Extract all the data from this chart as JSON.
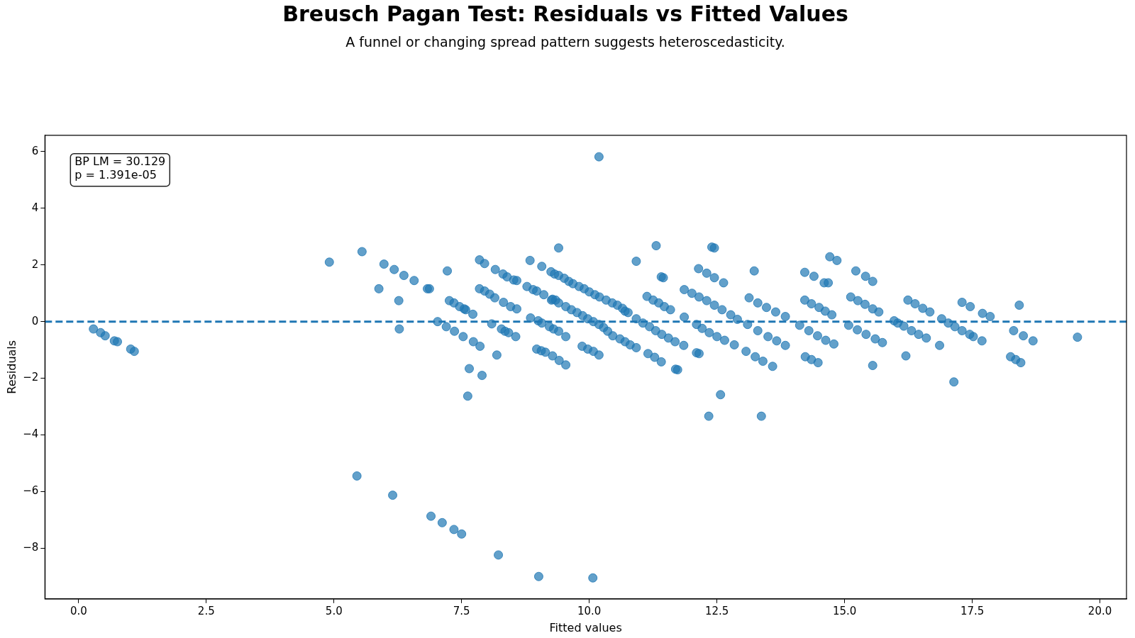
{
  "chart_data": {
    "type": "scatter",
    "title": "Breusch Pagan Test: Residuals vs Fitted Values",
    "subtitle": "A funnel or changing spread pattern suggests heteroscedasticity.",
    "xlabel": "Fitted values",
    "ylabel": "Residuals",
    "annotations": [
      "BP LM = 30.129\np = 1.391e-05"
    ],
    "xlim": [
      -0.66,
      20.52
    ],
    "ylim": [
      -9.79,
      6.58
    ],
    "xticks": [
      {
        "value": 0,
        "label": "0.0"
      },
      {
        "value": 2.5,
        "label": "2.5"
      },
      {
        "value": 5,
        "label": "5.0"
      },
      {
        "value": 7.5,
        "label": "7.5"
      },
      {
        "value": 10,
        "label": "10.0"
      },
      {
        "value": 12.5,
        "label": "12.5"
      },
      {
        "value": 15,
        "label": "15.0"
      },
      {
        "value": 17.5,
        "label": "17.5"
      },
      {
        "value": 20,
        "label": "20.0"
      }
    ],
    "yticks": [
      {
        "value": -8,
        "label": "−8"
      },
      {
        "value": -6,
        "label": "−6"
      },
      {
        "value": -4,
        "label": "−4"
      },
      {
        "value": -2,
        "label": "−2"
      },
      0,
      2,
      4,
      6
    ],
    "grid": false,
    "legend": false,
    "marker": "circle",
    "ref_lines": [
      {
        "axis": "y",
        "value": 0,
        "color": "#1f77b4",
        "line_style": "dashed"
      }
    ],
    "series": [
      {
        "color": "#1f77b4",
        "x": [
          0.29,
          0.43,
          0.52,
          0.7,
          0.76,
          1.02,
          1.09,
          4.91,
          5.55,
          5.88,
          5.98,
          6.18,
          6.37,
          6.57,
          6.83,
          6.87,
          6.27,
          6.28,
          5.45,
          6.15,
          6.9,
          7.12,
          7.35,
          7.5,
          8.22,
          9.01,
          10.07,
          10.19,
          7.22,
          7.26,
          7.35,
          7.46,
          7.55,
          7.58,
          7.03,
          7.2,
          7.36,
          7.53,
          7.73,
          7.86,
          7.65,
          7.9,
          7.62,
          7.72,
          7.85,
          7.95,
          8.16,
          8.31,
          8.39,
          8.52,
          8.58,
          7.85,
          7.95,
          8.05,
          8.15,
          8.32,
          8.46,
          8.58,
          8.09,
          8.28,
          8.35,
          8.42,
          8.56,
          8.19,
          8.84,
          9.07,
          9.4,
          8.78,
          8.9,
          8.97,
          9.11,
          9.28,
          9.34,
          8.85,
          9.0,
          9.07,
          9.22,
          9.3,
          9.4,
          9.54,
          8.97,
          9.06,
          9.14,
          9.28,
          9.41,
          9.54,
          9.25,
          9.32,
          9.4,
          9.51,
          9.6,
          9.68,
          9.8,
          9.9,
          10.0,
          10.11,
          10.2,
          10.33,
          10.45,
          10.55,
          10.65,
          10.7,
          10.76,
          9.26,
          9.4,
          9.54,
          9.65,
          9.76,
          9.87,
          9.97,
          10.08,
          10.19,
          10.28,
          10.36,
          10.46,
          10.6,
          10.7,
          10.8,
          10.92,
          9.86,
          9.97,
          10.08,
          10.19,
          10.92,
          11.31,
          11.41,
          11.45,
          11.13,
          11.25,
          11.36,
          11.47,
          11.59,
          10.92,
          11.05,
          11.18,
          11.3,
          11.42,
          11.55,
          11.68,
          11.85,
          11.15,
          11.28,
          11.41,
          11.69,
          11.73,
          11.86,
          11.86,
          12.01,
          12.15,
          12.3,
          12.45,
          12.6,
          12.77,
          12.14,
          12.3,
          12.45,
          12.63,
          12.4,
          12.45,
          12.1,
          12.21,
          12.35,
          12.5,
          12.65,
          12.84,
          12.1,
          12.15,
          12.57,
          12.34,
          13.37,
          13.23,
          13.13,
          13.3,
          13.47,
          13.65,
          13.84,
          12.9,
          13.1,
          13.3,
          13.5,
          13.67,
          13.84,
          13.07,
          13.25,
          13.4,
          13.59,
          14.22,
          14.4,
          14.22,
          14.35,
          14.5,
          14.62,
          14.75,
          14.6,
          14.68,
          14.71,
          14.85,
          14.12,
          14.3,
          14.47,
          14.63,
          14.79,
          14.23,
          14.35,
          14.48,
          15.22,
          15.12,
          15.26,
          15.4,
          15.55,
          15.67,
          15.41,
          15.55,
          15.08,
          15.25,
          15.42,
          15.6,
          15.74,
          15.55,
          15.97,
          16.04,
          16.16,
          16.24,
          16.38,
          16.53,
          16.67,
          16.31,
          16.45,
          16.6,
          16.2,
          16.86,
          16.9,
          17.03,
          17.16,
          17.3,
          17.45,
          17.52,
          17.14,
          17.3,
          17.46,
          17.69,
          17.7,
          17.85,
          18.42,
          18.31,
          18.5,
          18.69,
          18.25,
          18.35,
          18.45,
          19.56
        ],
        "values": [
          -0.26,
          -0.39,
          -0.5,
          -0.68,
          -0.71,
          -0.97,
          -1.05,
          2.1,
          2.47,
          1.16,
          2.03,
          1.84,
          1.63,
          1.45,
          1.16,
          1.16,
          0.74,
          -0.26,
          -5.45,
          -6.13,
          -6.87,
          -7.1,
          -7.34,
          -7.5,
          -8.24,
          -9.0,
          -9.05,
          5.82,
          1.79,
          0.74,
          0.66,
          0.53,
          0.45,
          0.42,
          0,
          -0.18,
          -0.34,
          -0.53,
          -0.71,
          -0.87,
          -1.66,
          -1.9,
          -2.63,
          0.26,
          2.18,
          2.05,
          1.84,
          1.68,
          1.58,
          1.47,
          1.45,
          1.16,
          1.08,
          0.97,
          0.84,
          0.68,
          0.53,
          0.45,
          -0.08,
          -0.26,
          -0.34,
          -0.39,
          -0.53,
          -1.18,
          2.16,
          1.95,
          2.6,
          1.24,
          1.13,
          1.08,
          0.95,
          0.79,
          0.76,
          0.13,
          0.03,
          -0.05,
          -0.18,
          -0.26,
          -0.34,
          -0.53,
          -0.97,
          -1.03,
          -1.08,
          -1.21,
          -1.37,
          -1.53,
          1.76,
          1.68,
          1.63,
          1.53,
          1.42,
          1.34,
          1.24,
          1.16,
          1.05,
          0.95,
          0.87,
          0.76,
          0.66,
          0.58,
          0.47,
          0.37,
          0.32,
          0.76,
          0.66,
          0.53,
          0.42,
          0.32,
          0.21,
          0.1,
          0,
          -0.1,
          -0.21,
          -0.34,
          -0.5,
          -0.61,
          -0.71,
          -0.82,
          -0.92,
          -0.87,
          -0.97,
          -1.05,
          -1.18,
          2.13,
          2.68,
          1.58,
          1.55,
          0.89,
          0.76,
          0.66,
          0.53,
          0.42,
          0.1,
          -0.05,
          -0.18,
          -0.32,
          -0.45,
          -0.58,
          -0.71,
          -0.84,
          -1.13,
          -1.26,
          -1.42,
          -1.68,
          -1.7,
          1.13,
          0.16,
          1.0,
          0.87,
          0.74,
          0.58,
          0.42,
          0.24,
          1.87,
          1.71,
          1.55,
          1.37,
          2.63,
          2.6,
          -0.1,
          -0.24,
          -0.39,
          -0.53,
          -0.66,
          -0.82,
          -1.1,
          -1.13,
          -2.58,
          -3.34,
          -3.34,
          1.79,
          0.84,
          0.66,
          0.5,
          0.34,
          0.18,
          0.08,
          -0.1,
          -0.32,
          -0.53,
          -0.68,
          -0.84,
          -1.05,
          -1.24,
          -1.4,
          -1.58,
          1.74,
          1.6,
          0.76,
          0.63,
          0.5,
          0.37,
          0.24,
          1.37,
          1.37,
          2.29,
          2.16,
          -0.13,
          -0.32,
          -0.5,
          -0.66,
          -0.79,
          -1.24,
          -1.34,
          -1.45,
          1.79,
          0.87,
          0.74,
          0.61,
          0.45,
          0.34,
          1.6,
          1.42,
          -0.13,
          -0.29,
          -0.45,
          -0.61,
          -0.74,
          -1.55,
          0.03,
          -0.05,
          -0.16,
          0.76,
          0.63,
          0.47,
          0.34,
          -0.32,
          -0.45,
          -0.58,
          -1.21,
          -0.84,
          0.1,
          -0.05,
          -0.18,
          -0.32,
          -0.45,
          -0.53,
          -2.13,
          0.68,
          0.53,
          -0.68,
          0.29,
          0.18,
          0.58,
          -0.32,
          -0.5,
          -0.68,
          -1.24,
          -1.34,
          -1.45,
          -0.55
        ]
      }
    ]
  }
}
